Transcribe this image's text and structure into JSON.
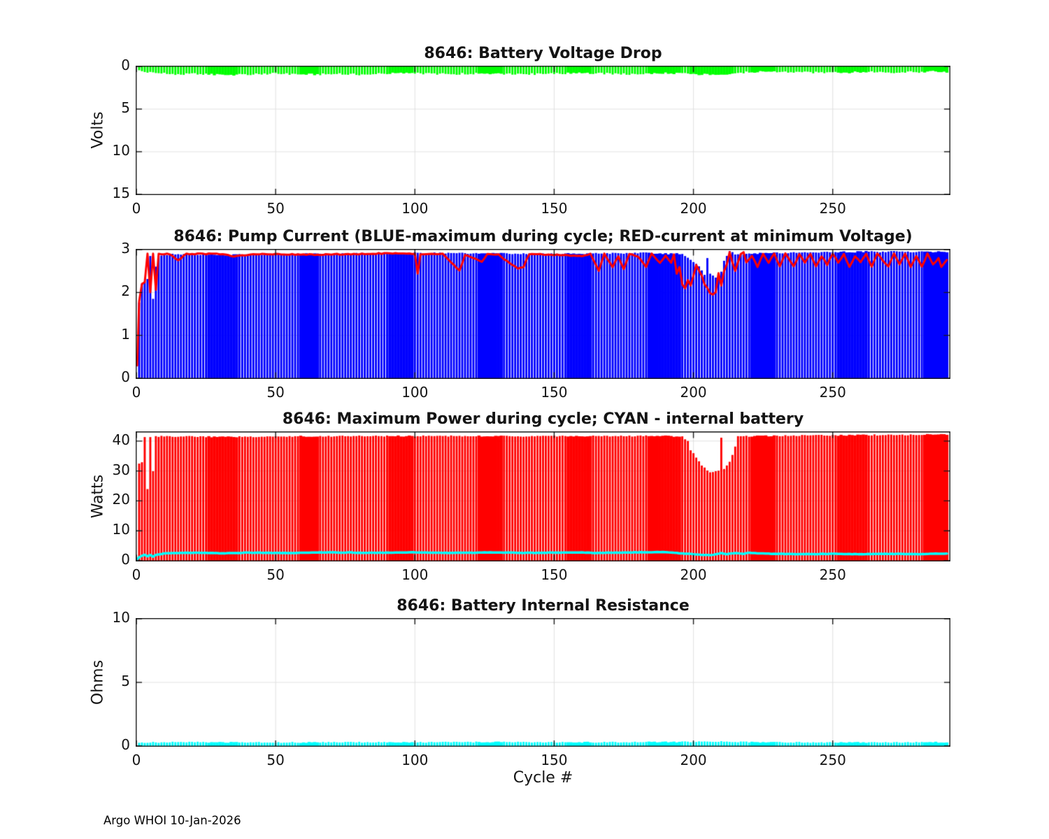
{
  "figure": {
    "footer": "Argo WHOI 10-Jan-2026",
    "xlabel": "Cycle #",
    "x_ticks": [
      0,
      50,
      100,
      150,
      200,
      250
    ],
    "xlim": [
      0,
      292
    ],
    "n_cycles": 291,
    "colors": {
      "background": "#ffffff",
      "axis": "#1a1a1a",
      "grid": "#e0e0e0",
      "text": "#141414",
      "green": "#00ff00",
      "blue": "#0000ff",
      "red": "#ff0000",
      "cyan": "#00ffff"
    }
  },
  "layout_hints": {
    "grid": true,
    "tick_dir": "in",
    "solid_bar_ranges": [
      [
        26,
        36
      ],
      [
        59,
        65
      ],
      [
        91,
        99
      ],
      [
        123,
        131
      ],
      [
        155,
        163
      ],
      [
        184,
        195
      ],
      [
        221,
        229
      ],
      [
        252,
        262
      ],
      [
        283,
        291
      ]
    ]
  },
  "chart_data": [
    {
      "type": "bar",
      "title": "8646: Battery Voltage Drop",
      "ylabel": "Volts",
      "ylim": [
        0,
        15
      ],
      "y_reversed": true,
      "y_ticks": [
        0,
        5,
        10,
        15
      ],
      "bars": {
        "name": "battery-voltage-drop",
        "color": "#00ff00",
        "noise": 0.22,
        "solid_extra": [
          [
            199,
            214
          ]
        ],
        "keypoints": [
          [
            0,
            0.35
          ],
          [
            1,
            0.5
          ],
          [
            3,
            0.65
          ],
          [
            6,
            0.75
          ],
          [
            10,
            0.85
          ],
          [
            16,
            0.95
          ],
          [
            22,
            0.85
          ],
          [
            28,
            0.95
          ],
          [
            34,
            1.0
          ],
          [
            40,
            0.95
          ],
          [
            48,
            0.85
          ],
          [
            56,
            0.9
          ],
          [
            64,
            0.95
          ],
          [
            72,
            0.9
          ],
          [
            80,
            0.95
          ],
          [
            88,
            0.85
          ],
          [
            96,
            0.8
          ],
          [
            104,
            0.85
          ],
          [
            112,
            0.9
          ],
          [
            120,
            0.85
          ],
          [
            128,
            0.9
          ],
          [
            136,
            0.85
          ],
          [
            144,
            0.9
          ],
          [
            152,
            0.85
          ],
          [
            160,
            0.8
          ],
          [
            168,
            0.85
          ],
          [
            176,
            0.9
          ],
          [
            184,
            0.85
          ],
          [
            192,
            0.8
          ],
          [
            198,
            0.85
          ],
          [
            203,
            0.95
          ],
          [
            208,
            0.9
          ],
          [
            214,
            0.85
          ],
          [
            220,
            0.65
          ],
          [
            226,
            0.6
          ],
          [
            232,
            0.65
          ],
          [
            240,
            0.7
          ],
          [
            248,
            0.75
          ],
          [
            256,
            0.7
          ],
          [
            264,
            0.65
          ],
          [
            272,
            0.7
          ],
          [
            280,
            0.65
          ],
          [
            286,
            0.6
          ],
          [
            291,
            0.65
          ]
        ]
      }
    },
    {
      "type": "bar+line",
      "title": "8646: Pump Current (BLUE-maximum during cycle; RED-current at minimum Voltage)",
      "ylabel": "",
      "ylim": [
        0,
        3
      ],
      "y_reversed": false,
      "y_ticks": [
        0,
        1,
        2,
        3
      ],
      "bars": {
        "name": "pump-current-max",
        "color": "#0000ff",
        "noise": 0.035,
        "keypoints": [
          [
            0,
            0.35
          ],
          [
            1,
            1.75
          ],
          [
            2,
            2.2
          ],
          [
            3,
            2.25
          ],
          [
            4,
            2.3
          ],
          [
            5,
            2.85
          ],
          [
            6,
            1.85
          ],
          [
            7,
            2.6
          ],
          [
            8,
            2.85
          ],
          [
            10,
            2.88
          ],
          [
            15,
            2.9
          ],
          [
            30,
            2.88
          ],
          [
            60,
            2.9
          ],
          [
            100,
            2.92
          ],
          [
            150,
            2.9
          ],
          [
            184,
            2.92
          ],
          [
            190,
            2.9
          ],
          [
            196,
            2.9
          ],
          [
            197,
            2.85
          ],
          [
            198,
            2.8
          ],
          [
            199,
            2.75
          ],
          [
            200,
            2.7
          ],
          [
            201,
            2.65
          ],
          [
            202,
            2.6
          ],
          [
            203,
            2.5
          ],
          [
            204,
            2.4
          ],
          [
            205,
            2.8
          ],
          [
            206,
            2.45
          ],
          [
            207,
            2.4
          ],
          [
            208,
            2.35
          ],
          [
            209,
            2.4
          ],
          [
            210,
            2.5
          ],
          [
            211,
            2.75
          ],
          [
            212,
            2.85
          ],
          [
            213,
            2.95
          ],
          [
            215,
            2.9
          ],
          [
            230,
            2.92
          ],
          [
            260,
            2.95
          ],
          [
            291,
            2.95
          ]
        ]
      },
      "line": {
        "name": "current-at-min-voltage",
        "color": "#ff0000",
        "noise": 0.025,
        "width": 3,
        "keypoints": [
          [
            0,
            0.3
          ],
          [
            1,
            1.8
          ],
          [
            2,
            2.2
          ],
          [
            3,
            2.25
          ],
          [
            4,
            2.9
          ],
          [
            5,
            2.0
          ],
          [
            6,
            2.9
          ],
          [
            7,
            2.05
          ],
          [
            8,
            2.9
          ],
          [
            12,
            2.9
          ],
          [
            15,
            2.75
          ],
          [
            18,
            2.9
          ],
          [
            30,
            2.9
          ],
          [
            35,
            2.85
          ],
          [
            45,
            2.9
          ],
          [
            60,
            2.88
          ],
          [
            80,
            2.9
          ],
          [
            95,
            2.92
          ],
          [
            100,
            2.9
          ],
          [
            101,
            2.45
          ],
          [
            102,
            2.9
          ],
          [
            110,
            2.9
          ],
          [
            116,
            2.5
          ],
          [
            118,
            2.88
          ],
          [
            124,
            2.72
          ],
          [
            126,
            2.9
          ],
          [
            130,
            2.88
          ],
          [
            137,
            2.55
          ],
          [
            139,
            2.6
          ],
          [
            141,
            2.9
          ],
          [
            150,
            2.88
          ],
          [
            160,
            2.85
          ],
          [
            163,
            2.9
          ],
          [
            166,
            2.5
          ],
          [
            168,
            2.9
          ],
          [
            171,
            2.6
          ],
          [
            173,
            2.85
          ],
          [
            175,
            2.55
          ],
          [
            177,
            2.9
          ],
          [
            180,
            2.85
          ],
          [
            183,
            2.6
          ],
          [
            185,
            2.9
          ],
          [
            188,
            2.7
          ],
          [
            190,
            2.85
          ],
          [
            192,
            2.7
          ],
          [
            193,
            2.9
          ],
          [
            194,
            2.45
          ],
          [
            195,
            2.6
          ],
          [
            196,
            2.2
          ],
          [
            197,
            2.1
          ],
          [
            198,
            2.3
          ],
          [
            199,
            2.15
          ],
          [
            200,
            2.4
          ],
          [
            201,
            2.65
          ],
          [
            202,
            2.5
          ],
          [
            203,
            2.4
          ],
          [
            204,
            2.2
          ],
          [
            205,
            2.1
          ],
          [
            206,
            1.98
          ],
          [
            207,
            1.95
          ],
          [
            208,
            2.0
          ],
          [
            209,
            2.45
          ],
          [
            210,
            2.15
          ],
          [
            211,
            2.5
          ],
          [
            212,
            2.65
          ],
          [
            213,
            2.95
          ],
          [
            214,
            2.7
          ],
          [
            215,
            2.5
          ],
          [
            216,
            2.7
          ],
          [
            217,
            2.9
          ],
          [
            218,
            2.95
          ],
          [
            219,
            2.7
          ],
          [
            221,
            2.85
          ],
          [
            223,
            2.6
          ],
          [
            225,
            2.9
          ],
          [
            227,
            2.7
          ],
          [
            229,
            2.9
          ],
          [
            231,
            2.6
          ],
          [
            233,
            2.9
          ],
          [
            236,
            2.6
          ],
          [
            238,
            2.9
          ],
          [
            240,
            2.7
          ],
          [
            242,
            2.9
          ],
          [
            244,
            2.6
          ],
          [
            246,
            2.85
          ],
          [
            248,
            2.65
          ],
          [
            250,
            2.9
          ],
          [
            252,
            2.7
          ],
          [
            254,
            2.9
          ],
          [
            256,
            2.6
          ],
          [
            258,
            2.85
          ],
          [
            260,
            2.7
          ],
          [
            262,
            2.9
          ],
          [
            264,
            2.6
          ],
          [
            266,
            2.9
          ],
          [
            268,
            2.75
          ],
          [
            270,
            2.6
          ],
          [
            272,
            2.9
          ],
          [
            274,
            2.65
          ],
          [
            276,
            2.9
          ],
          [
            278,
            2.6
          ],
          [
            280,
            2.85
          ],
          [
            282,
            2.6
          ],
          [
            284,
            2.9
          ],
          [
            286,
            2.65
          ],
          [
            288,
            2.8
          ],
          [
            289,
            2.6
          ],
          [
            291,
            2.75
          ]
        ]
      }
    },
    {
      "type": "bar+line",
      "title": "8646: Maximum Power during cycle; CYAN - internal battery",
      "ylabel": "Watts",
      "ylim": [
        0,
        43
      ],
      "y_reversed": false,
      "y_ticks": [
        0,
        10,
        20,
        30,
        40
      ],
      "bars": {
        "name": "max-power",
        "color": "#ff0000",
        "noise": 0.4,
        "keypoints": [
          [
            0,
            27
          ],
          [
            1,
            32.5
          ],
          [
            2,
            33
          ],
          [
            3,
            41.5
          ],
          [
            4,
            24
          ],
          [
            5,
            41.5
          ],
          [
            6,
            30
          ],
          [
            7,
            41.5
          ],
          [
            10,
            41.6
          ],
          [
            30,
            41.4
          ],
          [
            60,
            41.6
          ],
          [
            100,
            41.7
          ],
          [
            150,
            41.6
          ],
          [
            190,
            41.7
          ],
          [
            196,
            41.5
          ],
          [
            198,
            40
          ],
          [
            199,
            37
          ],
          [
            201,
            34.5
          ],
          [
            203,
            32
          ],
          [
            205,
            30
          ],
          [
            207,
            29.5
          ],
          [
            209,
            30
          ],
          [
            210,
            41
          ],
          [
            211,
            30.5
          ],
          [
            213,
            33
          ],
          [
            215,
            38
          ],
          [
            216,
            41.5
          ],
          [
            230,
            41.8
          ],
          [
            260,
            42
          ],
          [
            291,
            42.2
          ]
        ]
      },
      "line": {
        "name": "internal-battery-power",
        "color": "#00ffff",
        "noise": 0.12,
        "width": 3.5,
        "keypoints": [
          [
            0,
            0.5
          ],
          [
            1,
            1.2
          ],
          [
            2,
            1.7
          ],
          [
            3,
            2.0
          ],
          [
            4,
            1.5
          ],
          [
            5,
            1.9
          ],
          [
            6,
            1.4
          ],
          [
            7,
            2.0
          ],
          [
            10,
            2.4
          ],
          [
            15,
            2.6
          ],
          [
            20,
            2.7
          ],
          [
            30,
            2.5
          ],
          [
            40,
            2.7
          ],
          [
            55,
            2.6
          ],
          [
            70,
            2.8
          ],
          [
            85,
            2.65
          ],
          [
            100,
            2.8
          ],
          [
            110,
            2.6
          ],
          [
            120,
            2.7
          ],
          [
            130,
            2.8
          ],
          [
            140,
            2.6
          ],
          [
            150,
            2.7
          ],
          [
            160,
            2.8
          ],
          [
            165,
            2.6
          ],
          [
            170,
            2.7
          ],
          [
            180,
            2.8
          ],
          [
            190,
            2.9
          ],
          [
            195,
            2.5
          ],
          [
            200,
            2.2
          ],
          [
            203,
            2.0
          ],
          [
            206,
            1.9
          ],
          [
            208,
            2.1
          ],
          [
            210,
            2.5
          ],
          [
            212,
            2.2
          ],
          [
            215,
            2.6
          ],
          [
            218,
            2.3
          ],
          [
            220,
            2.7
          ],
          [
            225,
            2.4
          ],
          [
            230,
            2.3
          ],
          [
            240,
            2.2
          ],
          [
            250,
            2.3
          ],
          [
            260,
            2.2
          ],
          [
            270,
            2.3
          ],
          [
            280,
            2.2
          ],
          [
            291,
            2.4
          ]
        ]
      }
    },
    {
      "type": "bar",
      "title": "8646: Battery Internal Resistance",
      "ylabel": "Ohms",
      "ylim": [
        0,
        10
      ],
      "y_reversed": false,
      "y_ticks": [
        0,
        5,
        10
      ],
      "bars": {
        "name": "battery-internal-resistance",
        "color": "#00ffff",
        "noise": 0.08,
        "keypoints": [
          [
            0,
            0.28
          ],
          [
            15,
            0.3
          ],
          [
            30,
            0.3
          ],
          [
            45,
            0.29
          ],
          [
            60,
            0.28
          ],
          [
            75,
            0.3
          ],
          [
            90,
            0.31
          ],
          [
            105,
            0.29
          ],
          [
            120,
            0.31
          ],
          [
            135,
            0.32
          ],
          [
            150,
            0.3
          ],
          [
            165,
            0.3
          ],
          [
            180,
            0.31
          ],
          [
            195,
            0.32
          ],
          [
            210,
            0.34
          ],
          [
            225,
            0.3
          ],
          [
            240,
            0.29
          ],
          [
            255,
            0.28
          ],
          [
            270,
            0.29
          ],
          [
            285,
            0.3
          ],
          [
            291,
            0.3
          ]
        ]
      }
    }
  ]
}
